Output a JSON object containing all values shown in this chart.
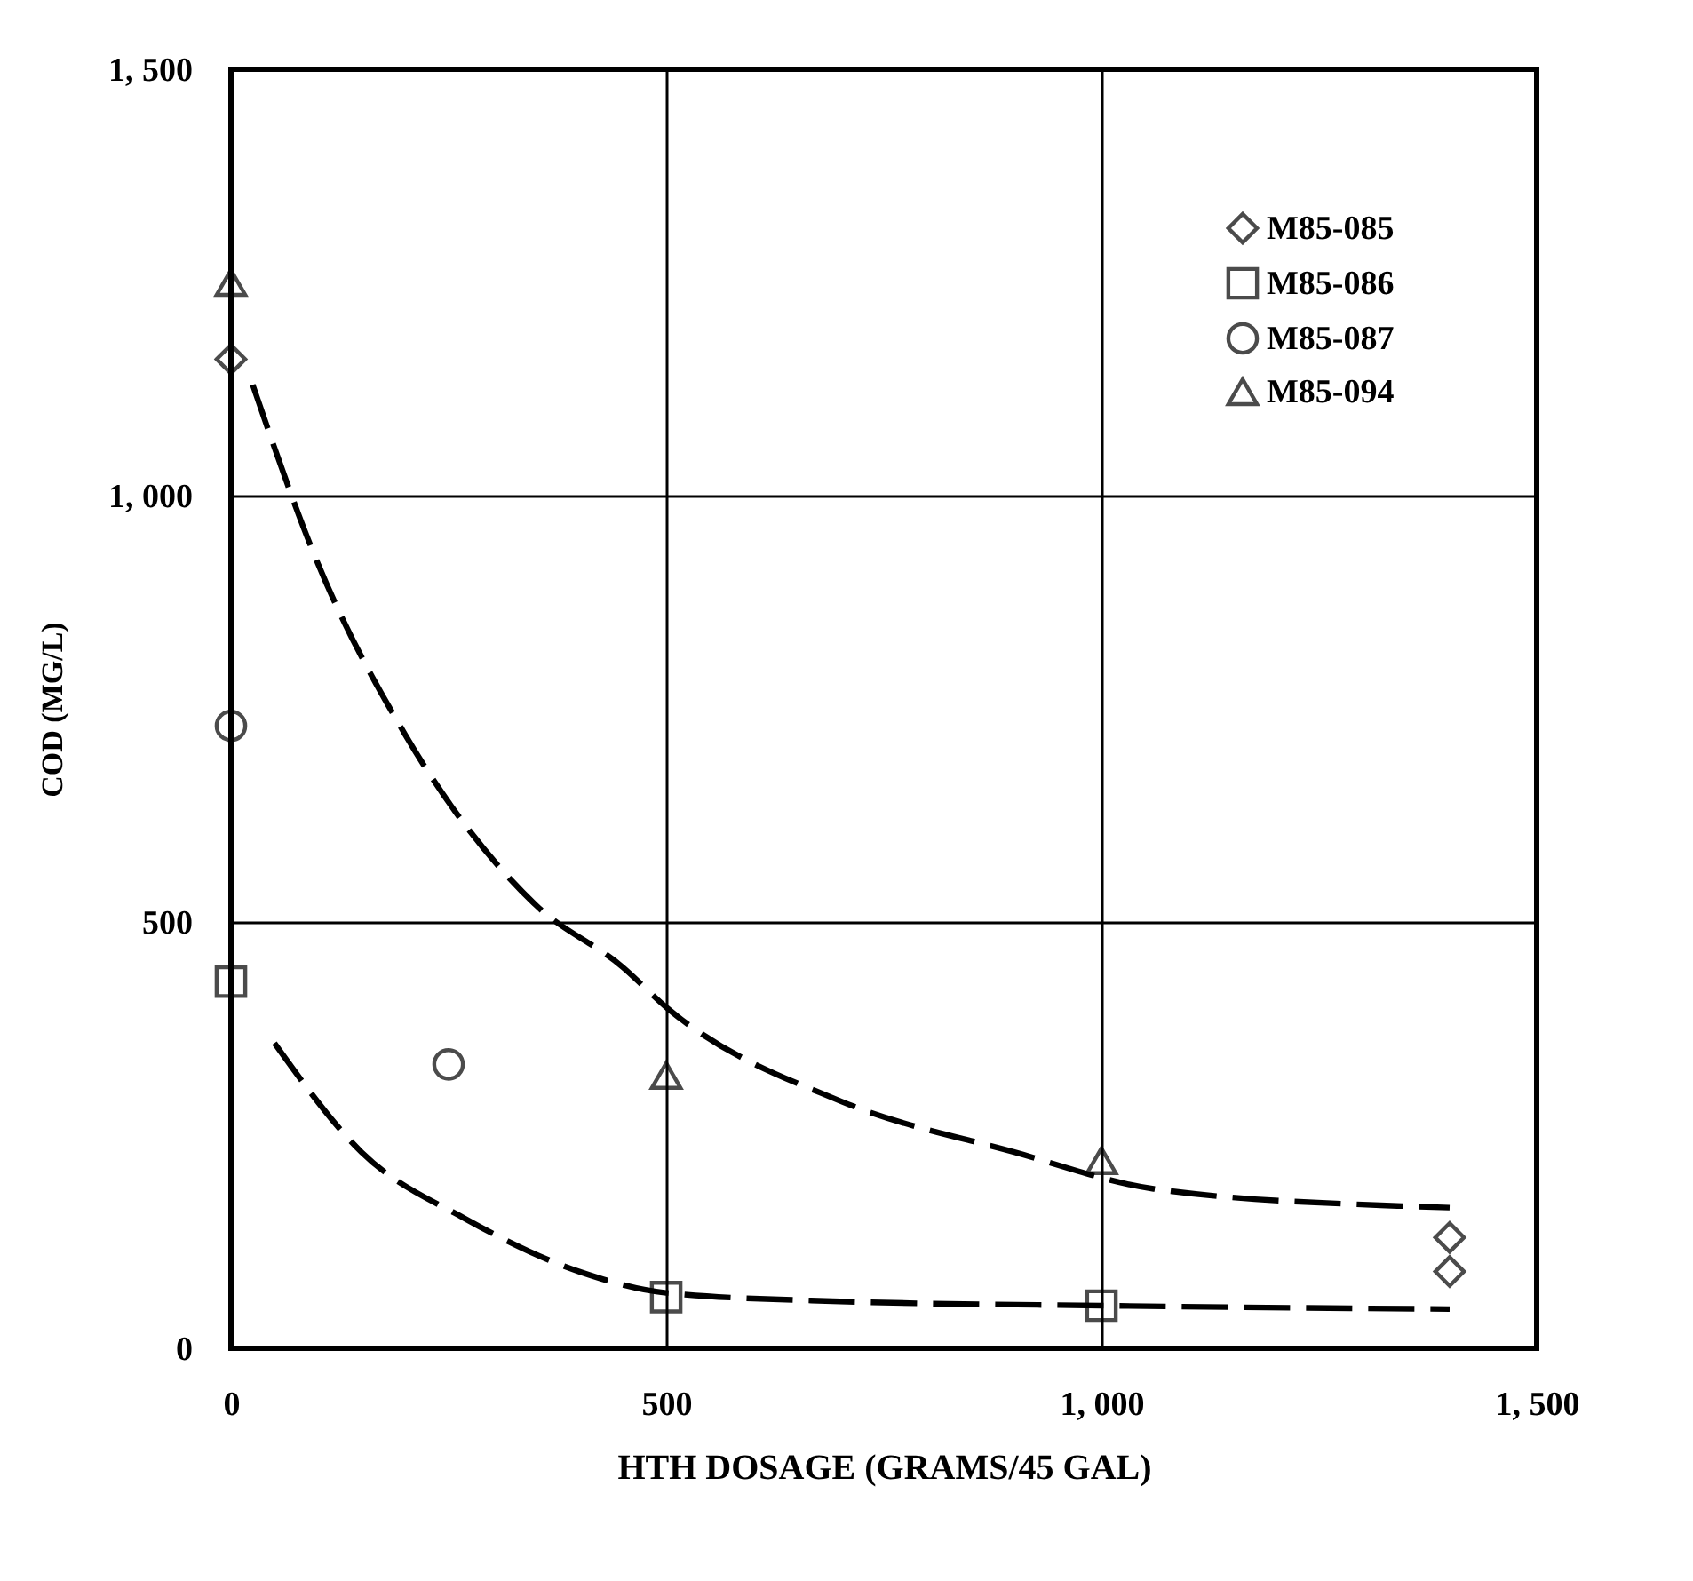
{
  "chart_data": {
    "type": "scatter",
    "xlabel": "HTH DOSAGE (GRAMS/45 GAL)",
    "ylabel": "COD (MG/L)",
    "xlim": [
      0,
      1500
    ],
    "ylim": [
      0,
      1500
    ],
    "xticks": [
      0,
      500,
      {
        "value": 1000,
        "label": "1, 000"
      },
      {
        "value": 1500,
        "label": "1, 500"
      }
    ],
    "yticks": [
      0,
      500,
      {
        "value": 1000,
        "label": "1, 000"
      },
      {
        "value": 1500,
        "label": "1, 500"
      }
    ],
    "grid": true,
    "legend": "top right",
    "series": [
      {
        "name": "M85-085",
        "type": "scatter",
        "marker": "diamond",
        "color": "#000000",
        "x": [
          0,
          1400,
          1400
        ],
        "values": [
          1160,
          130,
          90
        ]
      },
      {
        "name": "M85-086",
        "type": "scatter",
        "marker": "square",
        "color": "#000000",
        "x": [
          0,
          500,
          1000
        ],
        "values": [
          430,
          60,
          50
        ]
      },
      {
        "name": "M85-087",
        "type": "scatter",
        "marker": "circle",
        "color": "#000000",
        "x": [
          0,
          250
        ],
        "values": [
          730,
          333
        ]
      },
      {
        "name": "M85-094",
        "type": "scatter",
        "marker": "triangle",
        "color": "#000000",
        "x": [
          0,
          500,
          1000
        ],
        "values": [
          1250,
          320,
          220
        ]
      },
      {
        "type": "line",
        "line_style": "dashed",
        "color": "#000000",
        "x": [
          25,
          100,
          200,
          350,
          450,
          500,
          700,
          900,
          1060,
          1340,
          1400
        ],
        "values": [
          1130,
          920,
          720,
          520,
          447,
          400,
          290,
          230,
          187,
          167,
          165
        ]
      },
      {
        "type": "line",
        "line_style": "dashed",
        "color": "#000000",
        "x": [
          50,
          150,
          269,
          400,
          500,
          700,
          1000,
          1400
        ],
        "values": [
          358,
          230,
          152,
          90,
          65,
          55,
          50,
          46
        ]
      }
    ]
  }
}
